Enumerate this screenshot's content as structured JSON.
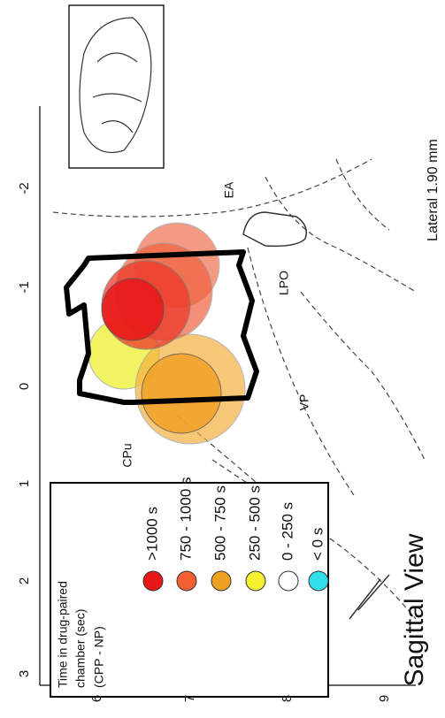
{
  "caption": "Lateral 1.90 mm",
  "title": "Sagittal View",
  "axes": {
    "horizontal": [
      "-2",
      "-1",
      "0",
      "1",
      "2",
      "3"
    ],
    "vertical": [
      "6",
      "7",
      "8",
      "9"
    ]
  },
  "regions": [
    "EA",
    "LPO",
    "VP",
    "CPu"
  ],
  "legend": {
    "title": [
      "Time in drug-paired",
      "chamber (sec)",
      "(CPP - NP)"
    ],
    "items": [
      ">1000 s",
      "750 - 1000 s",
      "500 - 750 s",
      "250 - 500 s",
      "0 - 250 s",
      "< 0 s"
    ]
  }
}
